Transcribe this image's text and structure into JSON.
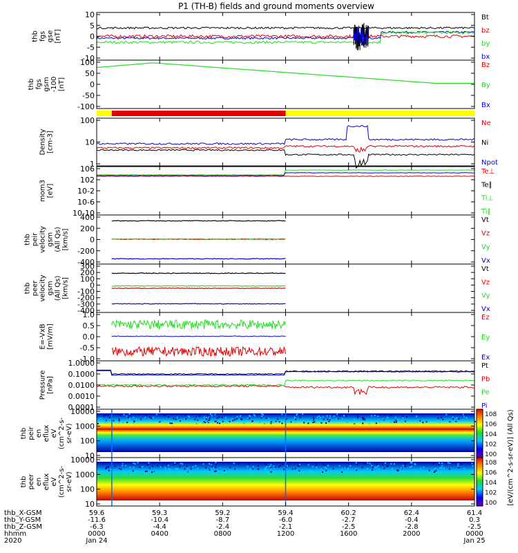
{
  "title": "P1 (TH-B) fields and ground moments overview",
  "colors": {
    "black": "#000000",
    "red": "#e00000",
    "green": "#22dd22",
    "blue": "#0000e0",
    "yellow": "#ffff00",
    "orange": "#ff9900",
    "cyan": "#00c8ff"
  },
  "chart_data": [
    {
      "id": "fgs_dsl",
      "type": "line",
      "ylabel": [
        "thb",
        "fgs",
        "gse",
        "[nT]"
      ],
      "ylim": [
        -10,
        10
      ],
      "yticks": [
        "10",
        "5",
        "0",
        "-5",
        "-10"
      ],
      "legend": [
        {
          "name": "Bt",
          "color": "black"
        },
        {
          "name": "bz",
          "color": "red"
        },
        {
          "name": "by",
          "color": "green"
        },
        {
          "name": "bx",
          "color": "blue"
        }
      ]
    },
    {
      "id": "fgs_gsm",
      "type": "line",
      "ylabel": [
        "thb",
        "fgs",
        "gsm",
        "-100",
        "[nT]"
      ],
      "ylim": [
        -120,
        110
      ],
      "yticks": [
        "100",
        "50",
        "0",
        "-50",
        "-100"
      ],
      "legend": [
        {
          "name": "Bz",
          "color": "red"
        },
        {
          "name": "By",
          "color": "green"
        },
        {
          "name": "Bx",
          "color": "blue"
        }
      ]
    },
    {
      "id": "mode_bar",
      "type": "bar",
      "segments": [
        {
          "from": 0.0,
          "to": 0.04,
          "color": "yellow"
        },
        {
          "from": 0.04,
          "to": 0.5,
          "color": "red"
        },
        {
          "from": 0.5,
          "to": 1.0,
          "color": "yellow"
        }
      ]
    },
    {
      "id": "density",
      "type": "line",
      "ylabel": [
        "Density",
        "[cm-3]"
      ],
      "yscale": "log",
      "yticks": [
        "100",
        "10",
        "1"
      ],
      "legend": [
        {
          "name": "Ne",
          "color": "red"
        },
        {
          "name": "Ni",
          "color": "black"
        },
        {
          "name": "Npot",
          "color": "blue"
        }
      ]
    },
    {
      "id": "temperature",
      "type": "line",
      "ylabel": [
        "mom3",
        "[eV]"
      ],
      "yscale": "log",
      "yticks": [
        "10^6",
        "10^2",
        "10^-2",
        "10^-6",
        "10^-10"
      ],
      "legend": [
        {
          "name": "Te⊥",
          "color": "red"
        },
        {
          "name": "Te∥",
          "color": "black"
        },
        {
          "name": "Ti⊥",
          "color": "green"
        },
        {
          "name": "Ti∥",
          "color": "green"
        }
      ]
    },
    {
      "id": "peir_velocity",
      "type": "line",
      "ylabel": [
        "thb",
        "peir",
        "velocity",
        "gsm",
        "(All Qs)",
        "[km/s]"
      ],
      "ylim": [
        -420,
        420
      ],
      "yticks": [
        "400",
        "200",
        "0",
        "-200",
        "-400"
      ],
      "x_extent": [
        0.04,
        0.5
      ],
      "series": [
        {
          "name": "Vt",
          "values": [
            320
          ]
        },
        {
          "name": "Vz",
          "values": [
            5
          ]
        },
        {
          "name": "Vy",
          "values": [
            10
          ]
        },
        {
          "name": "Vx",
          "values": [
            -330
          ]
        }
      ],
      "legend": [
        {
          "name": "Vt",
          "color": "black"
        },
        {
          "name": "Vz",
          "color": "red"
        },
        {
          "name": "Vy",
          "color": "green"
        },
        {
          "name": "Vx",
          "color": "blue"
        }
      ]
    },
    {
      "id": "peer_velocity",
      "type": "line",
      "ylabel": [
        "thb",
        "peer",
        "velocity",
        "gsm",
        "(All Qs)",
        "[km/s]"
      ],
      "ylim": [
        -420,
        420
      ],
      "yticks": [
        "300",
        "200",
        "100",
        "0",
        "-100",
        "-200",
        "-300",
        "-400"
      ],
      "x_extent": [
        0.04,
        0.5
      ],
      "series": [
        {
          "name": "Vt",
          "values": [
            260
          ]
        },
        {
          "name": "Vz",
          "values": [
            0
          ]
        },
        {
          "name": "Vy",
          "values": [
            40
          ]
        },
        {
          "name": "Vx",
          "values": [
            -270
          ]
        }
      ],
      "legend": [
        {
          "name": "Vt",
          "color": "black"
        },
        {
          "name": "Vz",
          "color": "red"
        },
        {
          "name": "Vy",
          "color": "green"
        },
        {
          "name": "Vx",
          "color": "blue"
        }
      ]
    },
    {
      "id": "efield",
      "type": "line",
      "ylabel": [
        "E=-VxB",
        "[mV/m]"
      ],
      "ylim": [
        -1.3,
        1.3
      ],
      "yticks": [
        "1.0",
        "0.5",
        "0.0",
        "-0.5",
        "-1.0"
      ],
      "x_extent": [
        0.04,
        0.5
      ],
      "legend": [
        {
          "name": "Ez",
          "color": "red"
        },
        {
          "name": "Ey",
          "color": "green"
        },
        {
          "name": "Ex",
          "color": "blue"
        }
      ]
    },
    {
      "id": "pressure",
      "type": "line",
      "ylabel": [
        "Pressure",
        "[nPa]"
      ],
      "yscale": "log",
      "yticks": [
        "1.0000",
        "0.1000",
        "0.0100",
        "0.0010",
        "0.0001"
      ],
      "legend": [
        {
          "name": "Pt",
          "color": "black"
        },
        {
          "name": "Pb",
          "color": "red"
        },
        {
          "name": "Pe",
          "color": "green"
        },
        {
          "name": "Pi",
          "color": "blue"
        }
      ]
    },
    {
      "id": "peir_eflux",
      "type": "heatmap",
      "ylabel": [
        "thb",
        "peir",
        "en",
        "eflux",
        "eV",
        "(cm^2-s-",
        "sr-eV)"
      ],
      "yscale": "log",
      "yticks": [
        "10000",
        "1000",
        "100",
        "10"
      ],
      "colorbar_label": "[eV/(cm^2-s-sr-eV)] (All Qs)",
      "colorbar_ticks": [
        "10^8",
        "10^6",
        "10^4",
        "10^2",
        "10^0"
      ]
    },
    {
      "id": "peer_eflux",
      "type": "heatmap",
      "ylabel": [
        "thb",
        "peer",
        "en",
        "eflux",
        "eV",
        "(cm^2-s-",
        "sr-eV)"
      ],
      "yscale": "log",
      "yticks": [
        "10000",
        "1000",
        "100",
        "10"
      ],
      "colorbar_label": "[eV/(cm^2-s-sr-eV)] (All Qs)",
      "colorbar_ticks": [
        "10^8",
        "10^6",
        "10^4",
        "10^2",
        "10^0"
      ]
    }
  ],
  "x_axis": {
    "row_labels": [
      "thb_X-GSM",
      "thb_Y-GSM",
      "thb_Z-GSM",
      "hhmm",
      "2020"
    ],
    "columns": [
      {
        "x": "59.6",
        "y": "-11.6",
        "z": "-6.3",
        "hhmm": "0000",
        "date": "Jan 24"
      },
      {
        "x": "59.3",
        "y": "-10.4",
        "z": "-4.4",
        "hhmm": "0400",
        "date": ""
      },
      {
        "x": "59.2",
        "y": "-8.7",
        "z": "-2.4",
        "hhmm": "0800",
        "date": ""
      },
      {
        "x": "59.4",
        "y": "-6.0",
        "z": "-2.1",
        "hhmm": "1200",
        "date": ""
      },
      {
        "x": "60.2",
        "y": "-2.7",
        "z": "-2.5",
        "hhmm": "1600",
        "date": ""
      },
      {
        "x": "62.4",
        "y": "-0.4",
        "z": "-2.8",
        "hhmm": "2000",
        "date": ""
      },
      {
        "x": "61.4",
        "y": "0.3",
        "z": "-2.5",
        "hhmm": "0000",
        "date": "Jan 25"
      }
    ]
  }
}
